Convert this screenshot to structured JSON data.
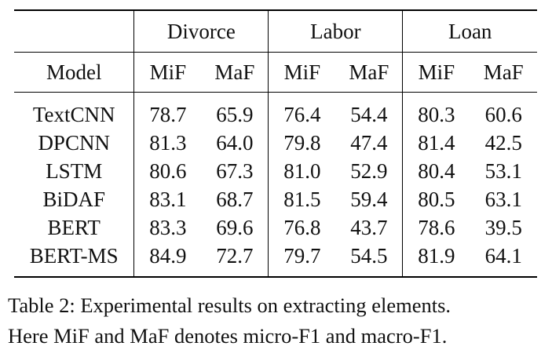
{
  "table": {
    "groups": [
      "Divorce",
      "Labor",
      "Loan"
    ],
    "model_header": "Model",
    "metric_headers": [
      "MiF",
      "MaF",
      "MiF",
      "MaF",
      "MiF",
      "MaF"
    ],
    "rows": [
      {
        "model": "TextCNN",
        "values": [
          "78.7",
          "65.9",
          "76.4",
          "54.4",
          "80.3",
          "60.6"
        ],
        "bold": [
          false,
          false,
          false,
          false,
          false,
          false
        ]
      },
      {
        "model": "DPCNN",
        "values": [
          "81.3",
          "64.0",
          "79.8",
          "47.4",
          "81.4",
          "42.5"
        ],
        "bold": [
          false,
          false,
          false,
          false,
          false,
          false
        ]
      },
      {
        "model": "LSTM",
        "values": [
          "80.6",
          "67.3",
          "81.0",
          "52.9",
          "80.4",
          "53.1"
        ],
        "bold": [
          false,
          false,
          false,
          false,
          false,
          false
        ]
      },
      {
        "model": "BiDAF",
        "values": [
          "83.1",
          "68.7",
          "81.5",
          "59.4",
          "80.5",
          "63.1"
        ],
        "bold": [
          false,
          false,
          true,
          true,
          false,
          false
        ]
      },
      {
        "model": "BERT",
        "values": [
          "83.3",
          "69.6",
          "76.8",
          "43.7",
          "78.6",
          "39.5"
        ],
        "bold": [
          false,
          false,
          false,
          false,
          false,
          false
        ]
      },
      {
        "model": "BERT-MS",
        "values": [
          "84.9",
          "72.7",
          "79.7",
          "54.5",
          "81.9",
          "64.1"
        ],
        "bold": [
          true,
          true,
          false,
          false,
          true,
          true
        ]
      }
    ]
  },
  "caption": {
    "line1": "Table 2: Experimental results on extracting elements.",
    "line2": "Here MiF and MaF denotes micro-F1 and macro-F1."
  }
}
